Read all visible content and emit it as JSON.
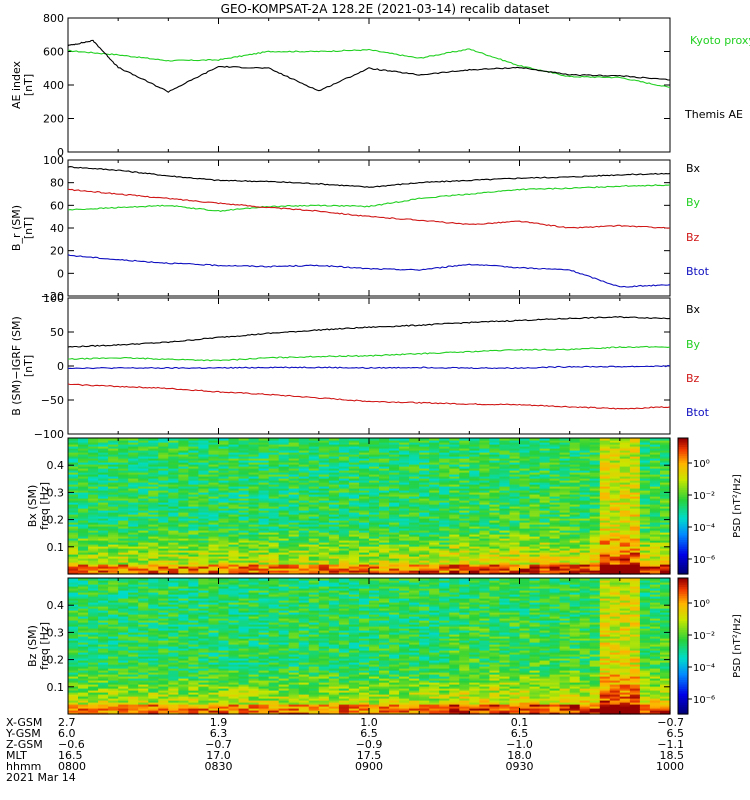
{
  "title": "GEO-KOMPSAT-2A 128.2E (2021-03-14) recalib dataset",
  "colors": {
    "black": "#000000",
    "green": "#22d022",
    "red": "#d01818",
    "blue": "#1010c0"
  },
  "chart_data": [
    {
      "type": "line",
      "ylabel": "AE index",
      "yunit": "[nT]",
      "ylim": [
        0,
        800
      ],
      "yticks": [
        "0",
        "200",
        "400",
        "600",
        "800"
      ],
      "xlim": [
        "08:00",
        "10:00"
      ],
      "series": [
        {
          "name": "Kyoto proxy AE",
          "color": "#22d022",
          "t": [
            "08:00",
            "08:10",
            "08:20",
            "08:30",
            "08:40",
            "08:50",
            "09:00",
            "09:10",
            "09:20",
            "09:30",
            "09:40",
            "09:50",
            "10:00"
          ],
          "values": [
            605,
            580,
            545,
            550,
            600,
            600,
            610,
            560,
            615,
            515,
            450,
            445,
            385
          ]
        },
        {
          "name": "Themis AE",
          "color": "#000000",
          "t": [
            "08:00",
            "08:05",
            "08:10",
            "08:20",
            "08:30",
            "08:40",
            "08:50",
            "09:00",
            "09:10",
            "09:20",
            "09:30",
            "09:40",
            "09:50",
            "10:00"
          ],
          "values": [
            635,
            665,
            505,
            360,
            510,
            500,
            365,
            500,
            460,
            490,
            505,
            460,
            455,
            430
          ]
        }
      ]
    },
    {
      "type": "line",
      "ylabel": "B_r (SM)",
      "yunit": "[nT]",
      "ylim": [
        -20,
        100
      ],
      "yticks": [
        "−20",
        "0",
        "20",
        "40",
        "60",
        "80",
        "100"
      ],
      "xlim": [
        "08:00",
        "10:00"
      ],
      "series": [
        {
          "name": "Bx",
          "color": "#000000",
          "t": [
            "08:00",
            "08:10",
            "08:20",
            "08:30",
            "08:40",
            "08:50",
            "09:00",
            "09:10",
            "09:20",
            "09:30",
            "09:40",
            "09:50",
            "10:00"
          ],
          "values": [
            94,
            91,
            86,
            82,
            81,
            79,
            76,
            80,
            82,
            84,
            85,
            87,
            88
          ]
        },
        {
          "name": "By",
          "color": "#22d022",
          "t": [
            "08:00",
            "08:10",
            "08:20",
            "08:30",
            "08:40",
            "08:50",
            "09:00",
            "09:10",
            "09:20",
            "09:30",
            "09:40",
            "09:50",
            "10:00"
          ],
          "values": [
            56,
            58,
            60,
            55,
            59,
            60,
            59,
            66,
            70,
            74,
            75,
            77,
            78
          ]
        },
        {
          "name": "Bz",
          "color": "#d01818",
          "t": [
            "08:00",
            "08:10",
            "08:20",
            "08:30",
            "08:40",
            "08:50",
            "09:00",
            "09:10",
            "09:20",
            "09:30",
            "09:40",
            "09:50",
            "10:00"
          ],
          "values": [
            74,
            70,
            66,
            62,
            58,
            55,
            50,
            47,
            43,
            46,
            40,
            42,
            40
          ]
        },
        {
          "name": "Btot",
          "color": "#1010c0",
          "t": [
            "08:00",
            "08:10",
            "08:20",
            "08:30",
            "08:40",
            "08:50",
            "09:00",
            "09:10",
            "09:20",
            "09:30",
            "09:40",
            "09:50",
            "10:00"
          ],
          "values": [
            16,
            12,
            9,
            7,
            6,
            7,
            4,
            3,
            8,
            5,
            3,
            -12,
            -10
          ]
        }
      ]
    },
    {
      "type": "line",
      "ylabel": "B (SM)−IGRF (SM)",
      "yunit": "[nT]",
      "ylim": [
        -100,
        100
      ],
      "yticks": [
        "−100",
        "−50",
        "0",
        "50",
        "100"
      ],
      "xlim": [
        "08:00",
        "10:00"
      ],
      "series": [
        {
          "name": "Bx",
          "color": "#000000",
          "t": [
            "08:00",
            "08:10",
            "08:20",
            "08:30",
            "08:40",
            "08:50",
            "09:00",
            "09:10",
            "09:20",
            "09:30",
            "09:40",
            "09:50",
            "10:00"
          ],
          "values": [
            28,
            31,
            35,
            42,
            48,
            53,
            57,
            60,
            64,
            67,
            70,
            72,
            70
          ]
        },
        {
          "name": "By",
          "color": "#22d022",
          "t": [
            "08:00",
            "08:10",
            "08:20",
            "08:30",
            "08:40",
            "08:50",
            "09:00",
            "09:10",
            "09:20",
            "09:30",
            "09:40",
            "09:50",
            "10:00"
          ],
          "values": [
            10,
            12,
            10,
            8,
            12,
            14,
            15,
            18,
            21,
            24,
            24,
            28,
            28
          ]
        },
        {
          "name": "Bz",
          "color": "#d01818",
          "t": [
            "08:00",
            "08:10",
            "08:20",
            "08:30",
            "08:40",
            "08:50",
            "09:00",
            "09:10",
            "09:20",
            "09:30",
            "09:40",
            "09:50",
            "10:00"
          ],
          "values": [
            -27,
            -30,
            -33,
            -38,
            -42,
            -47,
            -52,
            -54,
            -56,
            -57,
            -60,
            -63,
            -60
          ]
        },
        {
          "name": "Btot",
          "color": "#1010c0",
          "t": [
            "08:00",
            "08:10",
            "08:20",
            "08:30",
            "08:40",
            "08:50",
            "09:00",
            "09:10",
            "09:20",
            "09:30",
            "09:40",
            "09:50",
            "10:00"
          ],
          "values": [
            -3,
            -3,
            -3,
            -3,
            -2,
            -2,
            -3,
            -2,
            -3,
            -3,
            -1,
            -1,
            0
          ]
        }
      ]
    },
    {
      "type": "heatmap",
      "ylabel": "Bx (SM)",
      "yunit": "freq [Hz]",
      "ylim": [
        0,
        0.5
      ],
      "yticks": [
        "0.1",
        "0.2",
        "0.3",
        "0.4"
      ],
      "colorbar_label": "PSD [nT²/Hz]",
      "colorbar_ticks": [
        "10⁰",
        "10⁻²",
        "10⁻⁴",
        "10⁻⁶"
      ]
    },
    {
      "type": "heatmap",
      "ylabel": "Bz (SM)",
      "yunit": "freq [Hz]",
      "ylim": [
        0,
        0.5
      ],
      "yticks": [
        "0.1",
        "0.2",
        "0.3",
        "0.4"
      ],
      "colorbar_label": "PSD [nT²/Hz]",
      "colorbar_ticks": [
        "10⁰",
        "10⁻²",
        "10⁻⁴",
        "10⁻⁶"
      ]
    }
  ],
  "ephemeris": {
    "row_labels": [
      "X-GSM",
      "Y-GSM",
      "Z-GSM",
      "MLT",
      "hhmm"
    ],
    "columns": [
      [
        "2.7",
        "6.0",
        "−0.6",
        "16.5",
        "0800"
      ],
      [
        "1.9",
        "6.3",
        "−0.7",
        "17.0",
        "0830"
      ],
      [
        "1.0",
        "6.5",
        "−0.9",
        "17.5",
        "0900"
      ],
      [
        "0.1",
        "6.5",
        "−1.0",
        "18.0",
        "0930"
      ],
      [
        "−0.7",
        "6.5",
        "−1.1",
        "18.5",
        "1000"
      ]
    ],
    "date": "2021 Mar 14"
  }
}
